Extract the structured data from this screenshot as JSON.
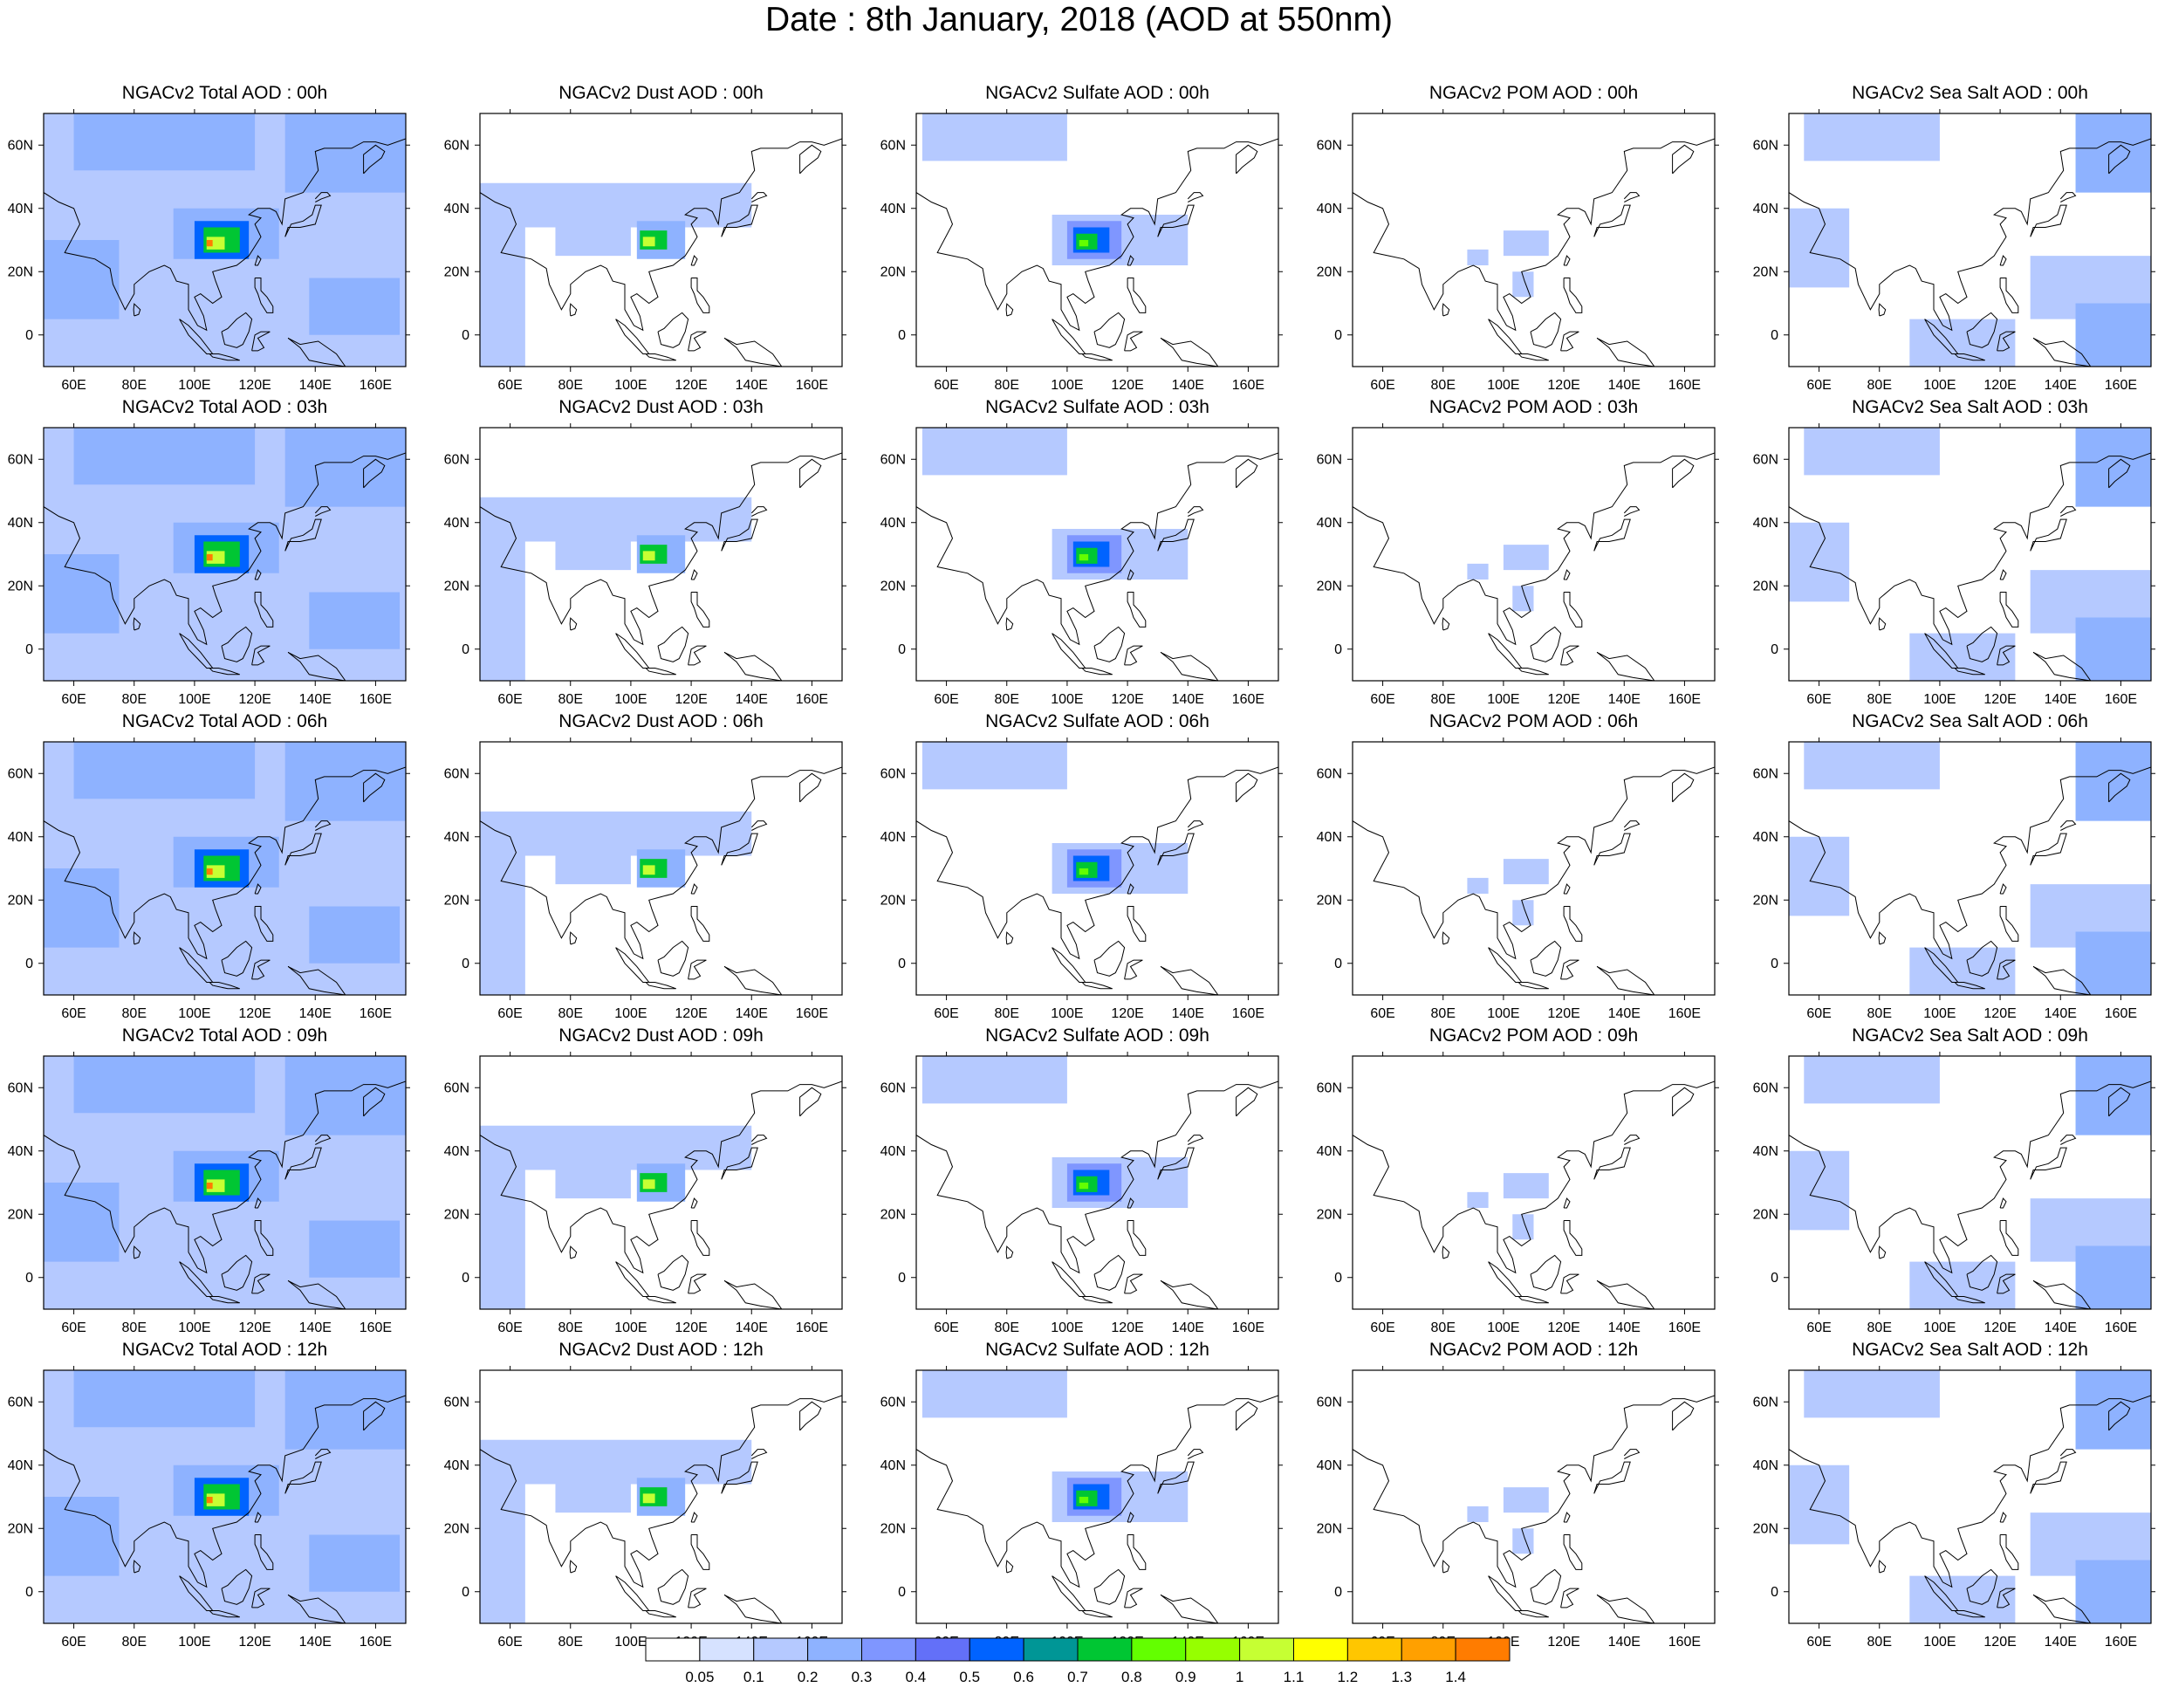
{
  "title": "Date : 8th January, 2018 (AOD at 550nm)",
  "map": {
    "projection": "cylindrical-equidistant",
    "lon_range": [
      50,
      170
    ],
    "lat_range": [
      -10,
      70
    ],
    "x_ticks": [
      "60E",
      "80E",
      "100E",
      "120E",
      "140E",
      "160E"
    ],
    "x_tick_values": [
      60,
      80,
      100,
      120,
      140,
      160
    ],
    "y_ticks": [
      "60N",
      "40N",
      "20N",
      "0"
    ],
    "y_tick_values": [
      60,
      40,
      20,
      0
    ],
    "coastline_color": "#000000"
  },
  "panels": [
    {
      "title": "NGACv2 Total AOD : 00h",
      "variable": "total",
      "hour": "00h"
    },
    {
      "title": "NGACv2 Dust AOD : 00h",
      "variable": "dust",
      "hour": "00h"
    },
    {
      "title": "NGACv2 Sulfate AOD : 00h",
      "variable": "sulfate",
      "hour": "00h"
    },
    {
      "title": "NGACv2 POM AOD : 00h",
      "variable": "pom",
      "hour": "00h"
    },
    {
      "title": "NGACv2 Sea Salt AOD : 00h",
      "variable": "seasalt",
      "hour": "00h"
    },
    {
      "title": "NGACv2 Total AOD : 03h",
      "variable": "total",
      "hour": "03h"
    },
    {
      "title": "NGACv2 Dust AOD : 03h",
      "variable": "dust",
      "hour": "03h"
    },
    {
      "title": "NGACv2 Sulfate AOD : 03h",
      "variable": "sulfate",
      "hour": "03h"
    },
    {
      "title": "NGACv2 POM AOD : 03h",
      "variable": "pom",
      "hour": "03h"
    },
    {
      "title": "NGACv2 Sea Salt AOD : 03h",
      "variable": "seasalt",
      "hour": "03h"
    },
    {
      "title": "NGACv2 Total AOD : 06h",
      "variable": "total",
      "hour": "06h"
    },
    {
      "title": "NGACv2 Dust AOD : 06h",
      "variable": "dust",
      "hour": "06h"
    },
    {
      "title": "NGACv2 Sulfate AOD : 06h",
      "variable": "sulfate",
      "hour": "06h"
    },
    {
      "title": "NGACv2 POM AOD : 06h",
      "variable": "pom",
      "hour": "06h"
    },
    {
      "title": "NGACv2 Sea Salt AOD : 06h",
      "variable": "seasalt",
      "hour": "06h"
    },
    {
      "title": "NGACv2 Total AOD : 09h",
      "variable": "total",
      "hour": "09h"
    },
    {
      "title": "NGACv2 Dust AOD : 09h",
      "variable": "dust",
      "hour": "09h"
    },
    {
      "title": "NGACv2 Sulfate AOD : 09h",
      "variable": "sulfate",
      "hour": "09h"
    },
    {
      "title": "NGACv2 POM AOD : 09h",
      "variable": "pom",
      "hour": "09h"
    },
    {
      "title": "NGACv2 Sea Salt  AOD : 09h",
      "variable": "seasalt",
      "hour": "09h"
    },
    {
      "title": "NGACv2 Total AOD  : 12h",
      "variable": "total",
      "hour": "12h"
    },
    {
      "title": "NGACv2 Dust AOD : 12h",
      "variable": "dust",
      "hour": "12h"
    },
    {
      "title": "NGACv2 Sulfate AOD : 12h",
      "variable": "sulfate",
      "hour": "12h"
    },
    {
      "title": "NGACv2 POM  AOD : 12h",
      "variable": "pom",
      "hour": "12h"
    },
    {
      "title": "NGACv2 Sea Salt  AOD : 12h",
      "variable": "seasalt",
      "hour": "12h"
    }
  ],
  "colorbar": {
    "labels": [
      "0.05",
      "0.1",
      "0.2",
      "0.3",
      "0.4",
      "0.5",
      "0.6",
      "0.7",
      "0.8",
      "0.9",
      "1",
      "1.1",
      "1.2",
      "1.3",
      "1.4"
    ],
    "colors": [
      "#ffffff",
      "#d6e2ff",
      "#b5c9ff",
      "#8eb2ff",
      "#7f96ff",
      "#6370f8",
      "#0063ff",
      "#009696",
      "#00c633",
      "#63ff00",
      "#96ff00",
      "#c6ff33",
      "#ffff00",
      "#ffc600",
      "#ffa000",
      "#ff7c00",
      "#ff1900"
    ]
  },
  "features": {
    "total": [
      {
        "lon": [
          50,
          170
        ],
        "lat": [
          -10,
          70
        ],
        "aod": 0.15
      },
      {
        "lon": [
          60,
          120
        ],
        "lat": [
          52,
          70
        ],
        "aod": 0.25
      },
      {
        "lon": [
          130,
          170
        ],
        "lat": [
          45,
          70
        ],
        "aod": 0.25
      },
      {
        "lon": [
          138,
          168
        ],
        "lat": [
          0,
          18
        ],
        "aod": 0.25
      },
      {
        "lon": [
          50,
          75
        ],
        "lat": [
          5,
          30
        ],
        "aod": 0.25
      },
      {
        "lon": [
          93,
          128
        ],
        "lat": [
          24,
          40
        ],
        "aod": 0.25
      },
      {
        "lon": [
          100,
          118
        ],
        "lat": [
          24,
          36
        ],
        "aod": 0.55
      },
      {
        "lon": [
          103,
          115
        ],
        "lat": [
          26,
          34
        ],
        "aod": 0.75
      },
      {
        "lon": [
          104,
          110
        ],
        "lat": [
          27,
          31
        ],
        "aod": 1.05
      },
      {
        "lon": [
          104,
          106
        ],
        "lat": [
          28,
          30
        ],
        "aod": 1.4
      }
    ],
    "dust": [
      {
        "lon": [
          50,
          140
        ],
        "lat": [
          34,
          48
        ],
        "aod": 0.15
      },
      {
        "lon": [
          50,
          65
        ],
        "lat": [
          -10,
          40
        ],
        "aod": 0.15
      },
      {
        "lon": [
          75,
          100
        ],
        "lat": [
          25,
          40
        ],
        "aod": 0.15
      },
      {
        "lon": [
          102,
          118
        ],
        "lat": [
          24,
          36
        ],
        "aod": 0.25
      },
      {
        "lon": [
          103,
          112
        ],
        "lat": [
          27,
          33
        ],
        "aod": 0.75
      },
      {
        "lon": [
          104,
          108
        ],
        "lat": [
          28,
          31
        ],
        "aod": 1.05
      }
    ],
    "sulfate": [
      {
        "lon": [
          52,
          100
        ],
        "lat": [
          55,
          70
        ],
        "aod": 0.15
      },
      {
        "lon": [
          95,
          140
        ],
        "lat": [
          22,
          38
        ],
        "aod": 0.15
      },
      {
        "lon": [
          100,
          118
        ],
        "lat": [
          24,
          36
        ],
        "aod": 0.35
      },
      {
        "lon": [
          102,
          114
        ],
        "lat": [
          26,
          34
        ],
        "aod": 0.55
      },
      {
        "lon": [
          103,
          110
        ],
        "lat": [
          27,
          32
        ],
        "aod": 0.75
      },
      {
        "lon": [
          104,
          107
        ],
        "lat": [
          28,
          30
        ],
        "aod": 0.85
      }
    ],
    "pom": [
      {
        "lon": [
          100,
          115
        ],
        "lat": [
          25,
          33
        ],
        "aod": 0.15
      },
      {
        "lon": [
          88,
          95
        ],
        "lat": [
          22,
          27
        ],
        "aod": 0.15
      },
      {
        "lon": [
          103,
          110
        ],
        "lat": [
          12,
          20
        ],
        "aod": 0.15
      }
    ],
    "seasalt": [
      {
        "lon": [
          55,
          100
        ],
        "lat": [
          55,
          70
        ],
        "aod": 0.15
      },
      {
        "lon": [
          145,
          170
        ],
        "lat": [
          45,
          70
        ],
        "aod": 0.25
      },
      {
        "lon": [
          130,
          170
        ],
        "lat": [
          5,
          25
        ],
        "aod": 0.15
      },
      {
        "lon": [
          145,
          170
        ],
        "lat": [
          -10,
          10
        ],
        "aod": 0.25
      },
      {
        "lon": [
          50,
          70
        ],
        "lat": [
          15,
          40
        ],
        "aod": 0.15
      },
      {
        "lon": [
          90,
          125
        ],
        "lat": [
          -10,
          5
        ],
        "aod": 0.15
      }
    ]
  }
}
